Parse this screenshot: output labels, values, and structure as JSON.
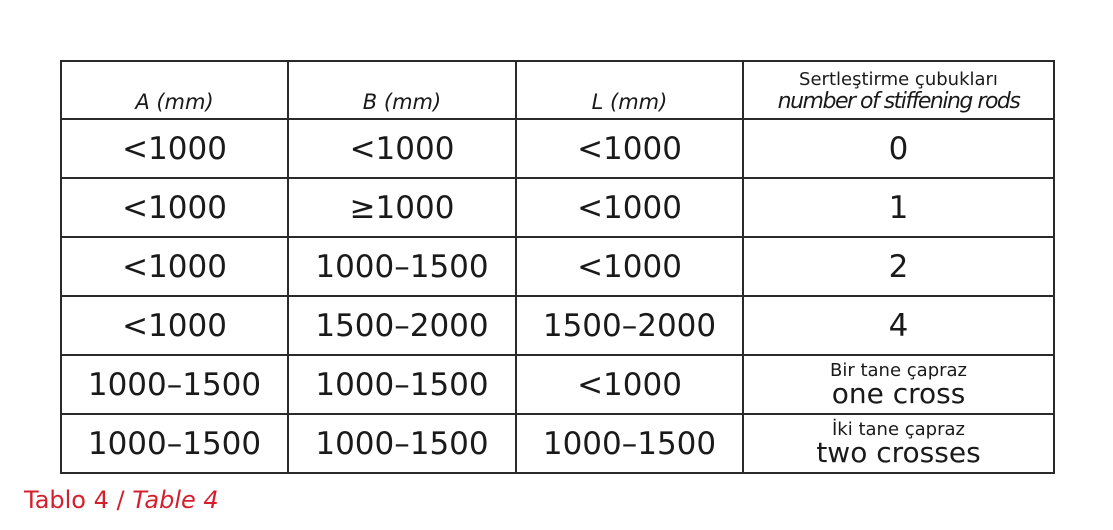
{
  "table": {
    "headers": [
      {
        "text": "A (mm)"
      },
      {
        "text": "B (mm)"
      },
      {
        "text": "L (mm)"
      },
      {
        "tr": "Sertleştirme çubukları",
        "en": "number of stiffening rods"
      }
    ],
    "rows": [
      [
        "<1000",
        "<1000",
        "<1000",
        "0"
      ],
      [
        "<1000",
        "≥1000",
        "<1000",
        "1"
      ],
      [
        "<1000",
        "1000–1500",
        "<1000",
        "2"
      ],
      [
        "<1000",
        "1500–2000",
        "1500–2000",
        "4"
      ],
      [
        "1000–1500",
        "1000–1500",
        "<1000",
        {
          "tr": "Bir tane çapraz",
          "en": "one cross"
        }
      ],
      [
        "1000–1500",
        "1000–1500",
        "1000–1500",
        {
          "tr": "İki tane çapraz",
          "en": "two crosses"
        }
      ]
    ]
  },
  "caption": {
    "tr": "Tablo 4",
    "separator": " / ",
    "en": "Table 4",
    "color": "#d4202e"
  }
}
